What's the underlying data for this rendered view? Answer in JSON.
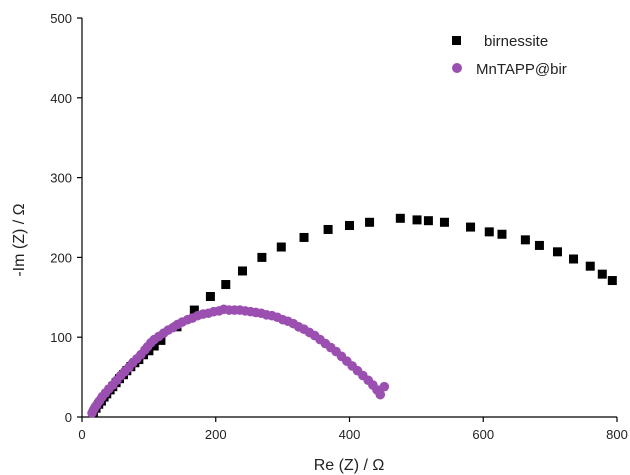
{
  "chart_data": {
    "type": "scatter",
    "xlabel": "Re (Z) / Ω",
    "ylabel": "-Im (Z) / Ω",
    "xlim": [
      0,
      800
    ],
    "ylim": [
      0,
      500
    ],
    "x_ticks": [
      "0",
      "200",
      "400",
      "600",
      "800"
    ],
    "y_ticks": [
      "0",
      "100",
      "200",
      "300",
      "400",
      "500"
    ],
    "grid": false,
    "legend_position": "top-right",
    "series": [
      {
        "name": "birnessite",
        "marker": "square",
        "color": "#000000",
        "points": [
          [
            17,
            5
          ],
          [
            21,
            11
          ],
          [
            25,
            16
          ],
          [
            29,
            20
          ],
          [
            33,
            25
          ],
          [
            37,
            29
          ],
          [
            42,
            34
          ],
          [
            46,
            38
          ],
          [
            51,
            43
          ],
          [
            56,
            48
          ],
          [
            62,
            53
          ],
          [
            67,
            58
          ],
          [
            73,
            63
          ],
          [
            79,
            68
          ],
          [
            85,
            72
          ],
          [
            92,
            78
          ],
          [
            100,
            83
          ],
          [
            108,
            89
          ],
          [
            118,
            96
          ],
          [
            142,
            113
          ],
          [
            168,
            134
          ],
          [
            192,
            151
          ],
          [
            215,
            166
          ],
          [
            240,
            183
          ],
          [
            269,
            200
          ],
          [
            298,
            213
          ],
          [
            332,
            225
          ],
          [
            368,
            235
          ],
          [
            400,
            240
          ],
          [
            430,
            244
          ],
          [
            476,
            249
          ],
          [
            501,
            247
          ],
          [
            518,
            246
          ],
          [
            542,
            244
          ],
          [
            581,
            238
          ],
          [
            609,
            232
          ],
          [
            628,
            229
          ],
          [
            663,
            222
          ],
          [
            684,
            215
          ],
          [
            711,
            207
          ],
          [
            735,
            198
          ],
          [
            760,
            189
          ],
          [
            778,
            179
          ],
          [
            793,
            171
          ]
        ]
      },
      {
        "name": "MnTAPP@bir",
        "marker": "circle",
        "color": "#9b4fb0",
        "points": [
          [
            15,
            5
          ],
          [
            18,
            10
          ],
          [
            22,
            15
          ],
          [
            26,
            20
          ],
          [
            30,
            25
          ],
          [
            35,
            30
          ],
          [
            40,
            35
          ],
          [
            46,
            40
          ],
          [
            52,
            46
          ],
          [
            58,
            52
          ],
          [
            64,
            57
          ],
          [
            70,
            62
          ],
          [
            76,
            68
          ],
          [
            82,
            73
          ],
          [
            88,
            78
          ],
          [
            94,
            84
          ],
          [
            98,
            88
          ],
          [
            103,
            93
          ],
          [
            108,
            97
          ],
          [
            115,
            101
          ],
          [
            122,
            105
          ],
          [
            129,
            109
          ],
          [
            136,
            112
          ],
          [
            143,
            116
          ],
          [
            150,
            119
          ],
          [
            158,
            122
          ],
          [
            165,
            124
          ],
          [
            173,
            127
          ],
          [
            181,
            129
          ],
          [
            189,
            130
          ],
          [
            197,
            132
          ],
          [
            205,
            133
          ],
          [
            212,
            135
          ],
          [
            220,
            134
          ],
          [
            228,
            134
          ],
          [
            236,
            134
          ],
          [
            244,
            133
          ],
          [
            252,
            132
          ],
          [
            260,
            131
          ],
          [
            268,
            130
          ],
          [
            276,
            128
          ],
          [
            284,
            127
          ],
          [
            292,
            125
          ],
          [
            300,
            122
          ],
          [
            308,
            120
          ],
          [
            316,
            117
          ],
          [
            324,
            113
          ],
          [
            332,
            110
          ],
          [
            340,
            106
          ],
          [
            348,
            102
          ],
          [
            356,
            97
          ],
          [
            364,
            92
          ],
          [
            372,
            87
          ],
          [
            380,
            82
          ],
          [
            388,
            76
          ],
          [
            396,
            70
          ],
          [
            404,
            64
          ],
          [
            412,
            58
          ],
          [
            420,
            52
          ],
          [
            428,
            46
          ],
          [
            435,
            40
          ],
          [
            441,
            34
          ],
          [
            446,
            28
          ],
          [
            452,
            38
          ]
        ]
      }
    ]
  }
}
